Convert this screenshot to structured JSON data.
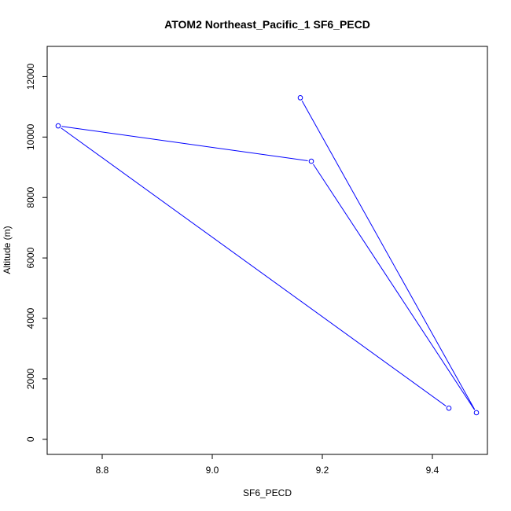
{
  "chart_data": {
    "type": "line",
    "title": "ATOM2 Northeast_Pacific_1 SF6_PECD",
    "xlabel": "SF6_PECD",
    "ylabel": "Altitude (m)",
    "xlim": [
      8.7,
      9.5
    ],
    "ylim": [
      0,
      12500
    ],
    "x_ticks": [
      8.8,
      9.0,
      9.2,
      9.4
    ],
    "x_tick_labels": [
      "8.8",
      "9.0",
      "9.2",
      "9.4"
    ],
    "y_ticks": [
      0,
      2000,
      4000,
      6000,
      8000,
      10000,
      12000
    ],
    "y_tick_labels": [
      "0",
      "2000",
      "4000",
      "6000",
      "8000",
      "10000",
      "12000"
    ],
    "grid": false,
    "series": [
      {
        "color": "#0000ff",
        "marker": "open-circle",
        "x": [
          9.16,
          9.48,
          9.18,
          8.72,
          9.43
        ],
        "y": [
          11300,
          880,
          9200,
          10370,
          1030
        ]
      }
    ]
  }
}
